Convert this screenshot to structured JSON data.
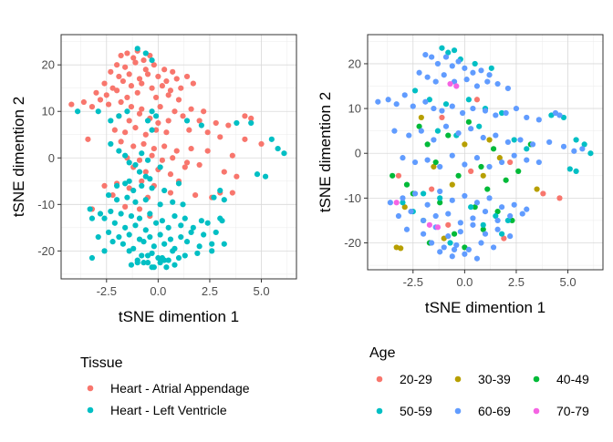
{
  "chart_data": [
    {
      "type": "scatter",
      "xlabel": "tSNE dimention 1",
      "ylabel": "tSNE dimention 2",
      "xlim": [
        -4.7,
        6.7
      ],
      "ylim": [
        -26,
        26.5
      ],
      "xticks": [
        -2.5,
        0.0,
        2.5,
        5.0
      ],
      "xtick_labels": [
        "-2.5",
        "0.0",
        "2.5",
        "5.0"
      ],
      "yticks": [
        -20,
        -10,
        0,
        10,
        20
      ],
      "ytick_labels": [
        "-20",
        "-10",
        "0",
        "10",
        "20"
      ],
      "grid": true,
      "legend": {
        "title": "Tissue",
        "placement": "bottom",
        "entries": [
          {
            "label": "Heart - Atrial Appendage",
            "color": "#F8766D"
          },
          {
            "label": "Heart - Left Ventricle",
            "color": "#00BFC4"
          }
        ]
      },
      "series": [
        {
          "name": "Heart - Atrial Appendage",
          "color": "#F8766D",
          "x": [
            -1.8,
            -1.5,
            -1.2,
            -1.0,
            -0.7,
            -0.4,
            -2.0,
            -1.6,
            -1.1,
            -0.6,
            -0.2,
            0.3,
            0.7,
            -2.3,
            -1.9,
            -1.4,
            -0.9,
            -0.5,
            0.0,
            0.4,
            0.9,
            1.4,
            -2.6,
            -2.2,
            -1.7,
            -1.3,
            -0.8,
            -0.3,
            0.2,
            0.6,
            1.1,
            1.7,
            -3.0,
            -2.5,
            -2.0,
            -1.5,
            -1.0,
            -0.1,
            0.5,
            1.0,
            -4.2,
            -3.6,
            -3.2,
            -2.8,
            -2.4,
            -1.8,
            -1.3,
            -0.8,
            0.1,
            0.8,
            1.6,
            2.2,
            4.2,
            4.5,
            -1.9,
            -1.4,
            -0.9,
            -0.4,
            0.0,
            0.5,
            1.2,
            2.0,
            2.8,
            3.4,
            -2.1,
            -1.6,
            -1.1,
            -0.6,
            -0.1,
            0.4,
            1.5,
            2.4,
            3.0,
            4.2,
            5.0,
            -3.4,
            -1.8,
            -1.2,
            -0.7,
            -0.2,
            0.3,
            0.9,
            1.6,
            2.4,
            3.6,
            -1.5,
            -0.9,
            -0.3,
            0.2,
            0.7,
            1.4,
            -1.2,
            -0.6,
            0.0,
            0.6,
            1.3,
            2.0,
            3.2,
            3.8,
            -2.6,
            -2.0,
            -1.4,
            -0.8,
            -0.2,
            1.0,
            -2.2,
            -0.5,
            0.6,
            1.8,
            2.6,
            3.0,
            3.6,
            -3.2,
            -1.6,
            -0.9,
            -0.4
          ],
          "y": [
            22,
            22.5,
            21.5,
            23,
            21,
            22,
            20,
            19.5,
            20.5,
            19,
            20,
            19,
            18.5,
            18.5,
            17.5,
            18,
            17,
            18,
            17.5,
            16.5,
            17,
            17.5,
            16,
            15,
            16.5,
            15.5,
            16,
            15,
            15.5,
            14.5,
            15,
            16,
            14,
            13.5,
            14.5,
            13,
            14,
            13,
            13.5,
            12.5,
            11.5,
            12,
            11,
            12.5,
            11.5,
            12,
            11,
            10.5,
            11,
            10,
            10.5,
            10,
            9,
            8.5,
            9,
            8,
            9.5,
            8.5,
            7.5,
            8,
            9,
            8,
            7.5,
            7,
            6,
            5.5,
            6.5,
            5,
            6,
            5.5,
            6,
            5.5,
            4.5,
            4,
            3,
            4,
            3.5,
            2.5,
            3,
            2,
            2.5,
            1.5,
            2,
            1.5,
            0.5,
            0,
            -0.5,
            0.5,
            -0.5,
            0,
            -1,
            -2,
            -3,
            -2.5,
            -3.5,
            -2,
            -1.5,
            -3,
            -4,
            -6,
            -5.5,
            -6.5,
            -5,
            -6,
            -5,
            -8,
            -8.5,
            -7.5,
            -8,
            -8.5,
            -7.5,
            -7.5,
            -11,
            -10.5,
            -11,
            -12.5
          ]
        },
        {
          "name": "Heart - Left Ventricle",
          "color": "#00BFC4",
          "x": [
            -1.0,
            -0.6,
            -0.3,
            -3.9,
            -2.9,
            -1.5,
            -1.9,
            -0.3,
            -0.1,
            -2.3,
            -0.5,
            3.8,
            4.5,
            2.1,
            1.4,
            -0.3,
            -2.3,
            -1.9,
            -1.6,
            -0.8,
            -1.4,
            -1.1,
            -0.5,
            0.1,
            -0.9,
            -0.6,
            5.5,
            5.8,
            6.1,
            4.8,
            5.2,
            -1.4,
            -0.4,
            1.0,
            -2.0,
            -1.6,
            -1.2,
            -0.8,
            -0.3,
            0.3,
            3.0,
            -2.4,
            -2.0,
            -1.5,
            -1.1,
            -0.6,
            0.1,
            0.7,
            1.2,
            2.7,
            3.2,
            -3.3,
            -2.8,
            -2.3,
            -1.8,
            -1.3,
            -0.9,
            -0.4,
            0.2,
            0.8,
            1.3,
            2.1,
            3.0,
            -3.2,
            -2.6,
            -2.1,
            -1.6,
            -1.1,
            -0.6,
            -0.1,
            0.5,
            1.1,
            1.7,
            2.4,
            3.1,
            -2.4,
            -1.9,
            -1.4,
            -0.9,
            -0.4,
            0.1,
            0.6,
            1.1,
            1.6,
            2.2,
            2.8,
            -2.9,
            -2.2,
            -1.7,
            -1.2,
            -0.7,
            -0.2,
            0.3,
            0.8,
            1.4,
            2.0,
            2.6,
            3.2,
            -2.6,
            -1.4,
            -0.8,
            -0.3,
            0.2,
            0.7,
            1.3,
            1.9,
            2.6,
            -3.2,
            -1.0,
            -0.5,
            0.0,
            0.5,
            1.0,
            -1.3,
            -0.7,
            -0.2,
            0.3,
            0.8,
            -1.0,
            -0.3,
            0.1,
            0.4,
            -0.5
          ],
          "y": [
            23.5,
            22.5,
            21,
            10,
            10,
            10,
            9,
            10,
            9,
            8,
            8,
            7.5,
            7.5,
            7,
            8,
            6,
            3,
            1.5,
            0.5,
            1,
            -1,
            -1.5,
            -0.5,
            -2,
            -3,
            -4,
            4,
            2,
            1,
            -3.5,
            -4,
            -5,
            -4.5,
            -5.5,
            -6,
            -5.5,
            -7,
            -6,
            -6.5,
            -7,
            -7,
            -8,
            -9,
            -8.5,
            -9.5,
            -9,
            -10,
            -9.5,
            -10,
            -8.5,
            -9,
            -11,
            -12,
            -11.5,
            -12,
            -12.5,
            -13,
            -12,
            -13.5,
            -12.5,
            -13,
            -13.5,
            -13,
            -13,
            -13,
            -14,
            -15,
            -14.5,
            -15.5,
            -14,
            -15,
            -14.5,
            -15,
            -14,
            -13.5,
            -16,
            -17,
            -16.5,
            -17.5,
            -17,
            -16.5,
            -17.5,
            -17,
            -16,
            -16.5,
            -16,
            -17,
            -18,
            -18.5,
            -19.5,
            -18,
            -19,
            -18.5,
            -19.5,
            -18,
            -19,
            -18.5,
            -18.5,
            -20,
            -20,
            -21,
            -20.5,
            -21.5,
            -20,
            -21,
            -20.5,
            -20,
            -21.5,
            -22,
            -22.5,
            -21.5,
            -22,
            -21.5,
            -23,
            -22.5,
            -23.5,
            -22,
            -23,
            -22.5,
            -23.5,
            -22.5,
            -23.5,
            -21
          ]
        }
      ]
    },
    {
      "type": "scatter",
      "xlabel": "tSNE dimention 1",
      "ylabel": "tSNE dimention 2",
      "xlim": [
        -4.7,
        6.7
      ],
      "ylim": [
        -26,
        26.5
      ],
      "xticks": [
        -2.5,
        0.0,
        2.5,
        5.0
      ],
      "xtick_labels": [
        "-2.5",
        "0.0",
        "2.5",
        "5.0"
      ],
      "yticks": [
        -20,
        -10,
        0,
        10,
        20
      ],
      "ytick_labels": [
        "-20",
        "-10",
        "0",
        "10",
        "20"
      ],
      "grid": true,
      "legend": {
        "title": "Age",
        "placement": "bottom",
        "entries": [
          {
            "label": "20-29",
            "color": "#F8766D"
          },
          {
            "label": "30-39",
            "color": "#B79F00"
          },
          {
            "label": "40-49",
            "color": "#00BA38"
          },
          {
            "label": "50-59",
            "color": "#00BFC4"
          },
          {
            "label": "60-69",
            "color": "#619CFF"
          },
          {
            "label": "70-79",
            "color": "#F564E3"
          }
        ]
      },
      "series": [
        {
          "name": "20-29",
          "color": "#F8766D",
          "x": [
            -3.2,
            -1.6,
            -0.8,
            0.6,
            2.2,
            3.8,
            -1.1,
            0.3,
            1.9,
            4.6
          ],
          "y": [
            -5,
            -8,
            -16,
            12,
            -2,
            -9,
            8,
            -4,
            -19,
            -10
          ]
        },
        {
          "name": "30-39",
          "color": "#B79F00",
          "x": [
            -3.3,
            -3.1,
            -2.1,
            -1.5,
            -0.6,
            0.0,
            1.7,
            3.5,
            -2.9,
            -1.0,
            0.9,
            1.2
          ],
          "y": [
            -21,
            -21.2,
            8,
            -3,
            -7,
            2,
            -1,
            -8,
            -12,
            -19,
            -5,
            3
          ]
        },
        {
          "name": "40-49",
          "color": "#00BA38",
          "x": [
            -3.5,
            -2.8,
            -2.2,
            -1.8,
            -1.4,
            -0.8,
            -0.3,
            0.2,
            0.8,
            1.4,
            2.0,
            -2.5,
            -1.2,
            0.5,
            1.1,
            2.6,
            3.2,
            -2.0,
            -0.5,
            0.9,
            1.6,
            -1.7,
            0.0,
            2.3
          ],
          "y": [
            -5,
            -7,
            6,
            2,
            -2,
            4,
            -5,
            7,
            -3,
            1,
            -6,
            -9,
            -11,
            -12,
            -8,
            -4,
            2,
            -15,
            -18,
            -17,
            -13,
            -20,
            -21,
            -15
          ]
        },
        {
          "name": "50-59",
          "color": "#00BFC4",
          "x": [
            -1.1,
            -0.8,
            -0.5,
            -0.2,
            0.5,
            1.3,
            -2.4,
            -1.7,
            -0.9,
            0.2,
            1.0,
            1.8,
            4.2,
            4.8,
            5.4,
            5.8,
            6.1,
            -1.3,
            -0.4,
            0.7,
            2.4,
            3.0,
            -2.0,
            -1.2,
            0.3,
            1.5,
            -3.0,
            -2.5,
            0.9,
            2.1,
            -0.7,
            1.8,
            5.1,
            5.4
          ],
          "y": [
            23.5,
            22.5,
            23,
            21,
            20,
            19,
            14,
            12,
            11,
            12,
            10,
            9,
            8.5,
            8,
            3,
            2,
            0,
            5,
            4,
            6,
            3,
            1,
            -9,
            -10,
            -12,
            -14,
            -11,
            -13,
            -16,
            -15,
            -20,
            -18,
            -3.5,
            -4
          ]
        },
        {
          "name": "60-69",
          "color": "#619CFF",
          "x": [
            -1.9,
            -1.6,
            -1.3,
            -0.9,
            -0.6,
            -0.3,
            0.0,
            0.4,
            0.8,
            1.2,
            -2.2,
            -1.8,
            -1.4,
            -1.0,
            -0.5,
            0.1,
            0.6,
            1.1,
            1.6,
            2.1,
            -4.2,
            -3.7,
            -3.3,
            -2.9,
            -2.5,
            -1.9,
            -1.5,
            -1.1,
            -0.6,
            -0.1,
            0.4,
            1.0,
            1.5,
            2.0,
            2.5,
            3.0,
            3.6,
            4.4,
            4.6,
            -3.4,
            -2.7,
            -2.1,
            -1.5,
            -0.9,
            -0.3,
            0.3,
            0.9,
            1.5,
            2.1,
            2.7,
            3.3,
            4.1,
            4.8,
            5.3,
            5.7,
            -3.0,
            -2.4,
            -1.8,
            -1.2,
            -0.6,
            0.0,
            0.6,
            1.2,
            1.8,
            2.4,
            3.0,
            3.6,
            -3.6,
            -3.0,
            -2.4,
            -1.8,
            -1.2,
            -0.6,
            0.0,
            0.6,
            1.2,
            1.8,
            2.4,
            3.0,
            -3.2,
            -2.6,
            -2.0,
            -1.4,
            -0.8,
            -0.2,
            0.4,
            1.0,
            1.6,
            2.2,
            2.8,
            -2.8,
            -2.0,
            -1.4,
            -0.8,
            -0.2,
            0.4,
            1.0,
            1.6,
            2.2,
            -1.6,
            -1.0,
            -0.4,
            0.2,
            0.8,
            1.4,
            -1.2,
            -0.6,
            0.0,
            0.6,
            -0.5
          ],
          "y": [
            22,
            21.5,
            20,
            21.5,
            19.5,
            20.5,
            19,
            18,
            18.5,
            17.5,
            18,
            17,
            16,
            17.5,
            16,
            16.5,
            15,
            16,
            15.5,
            14.5,
            11.5,
            12,
            11,
            13,
            10.5,
            11.5,
            10,
            9.5,
            10.5,
            9,
            10,
            9.5,
            8.5,
            9,
            10,
            8,
            7.5,
            9,
            8.5,
            5,
            4,
            5,
            3,
            6,
            4.5,
            5.5,
            3.5,
            4,
            2.5,
            3,
            2,
            2.5,
            1.5,
            0.5,
            1,
            -1,
            -2,
            -1.5,
            -3,
            -0.5,
            -2.5,
            -1,
            -3,
            -2,
            -0.5,
            -1.5,
            -2,
            -11,
            -10,
            -9,
            -11.5,
            -8.5,
            -10.5,
            -9.5,
            -11,
            -10,
            -12,
            -11.5,
            -12.5,
            -14,
            -13,
            -15,
            -14,
            -13.5,
            -15.5,
            -14.5,
            -13,
            -15,
            -14,
            -13.5,
            -17,
            -18,
            -16.5,
            -18.5,
            -17.5,
            -16,
            -18,
            -17,
            -18.5,
            -20,
            -21,
            -20.5,
            -21.5,
            -20,
            -21,
            -22,
            -23,
            -22.5,
            -23.5,
            -21.5
          ]
        },
        {
          "name": "70-79",
          "color": "#F564E3",
          "x": [
            -0.7,
            -0.4,
            -3.3,
            -1.7,
            -1.3
          ],
          "y": [
            15.5,
            15,
            -11,
            -16,
            -16.5
          ]
        }
      ]
    }
  ]
}
